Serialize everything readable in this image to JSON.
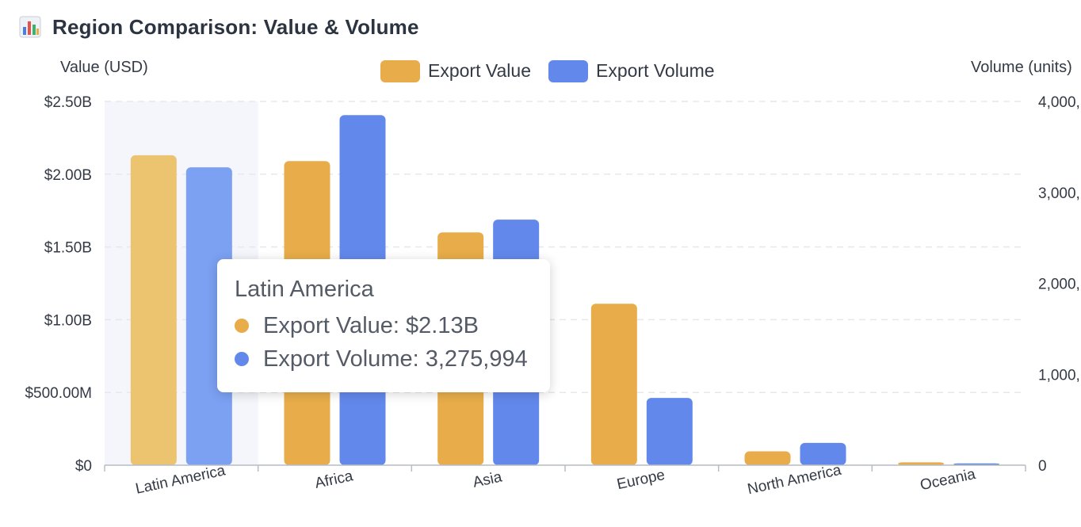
{
  "title": "Region Comparison: Value & Volume",
  "icon": "bar-chart-icon",
  "colors": {
    "value": "#e8ad4a",
    "volume": "#6288ec",
    "value_hover": "#ecc46f",
    "volume_hover": "#7ca0f2",
    "highlight_band": "#f4f6fb",
    "grid": "#e6e8ee",
    "axis": "#b8bcc6",
    "text": "#333a45"
  },
  "legend": {
    "value": "Export Value",
    "volume": "Export Volume"
  },
  "tooltip": {
    "title": "Latin America",
    "value_line": "Export Value: $2.13B",
    "volume_line": "Export Volume: 3,275,994"
  },
  "chart_data": {
    "type": "bar",
    "categories": [
      "Latin America",
      "Africa",
      "Asia",
      "Europe",
      "North America",
      "Oceania"
    ],
    "series": [
      {
        "name": "Export Value",
        "axis": "left",
        "values": [
          2130000000,
          2090000000,
          1600000000,
          1110000000,
          95000000,
          20000000
        ]
      },
      {
        "name": "Export Volume",
        "axis": "right",
        "values": [
          3275994,
          3850000,
          2700000,
          740000,
          245000,
          20000
        ]
      }
    ],
    "ylabel_left": "Value (USD)",
    "ylabel_right": "Volume (units)",
    "ylim_left": [
      0,
      2500000000
    ],
    "ylim_right": [
      0,
      4000000
    ],
    "yticks_left": [
      "$0",
      "$500.00M",
      "$1.00B",
      "$1.50B",
      "$2.00B",
      "$2.50B"
    ],
    "yticks_right": [
      "0",
      "1,000,",
      "2,000,",
      "3,000,",
      "4,000,"
    ],
    "highlighted_category": "Latin America",
    "grid": true,
    "legend_position": "top-center"
  }
}
